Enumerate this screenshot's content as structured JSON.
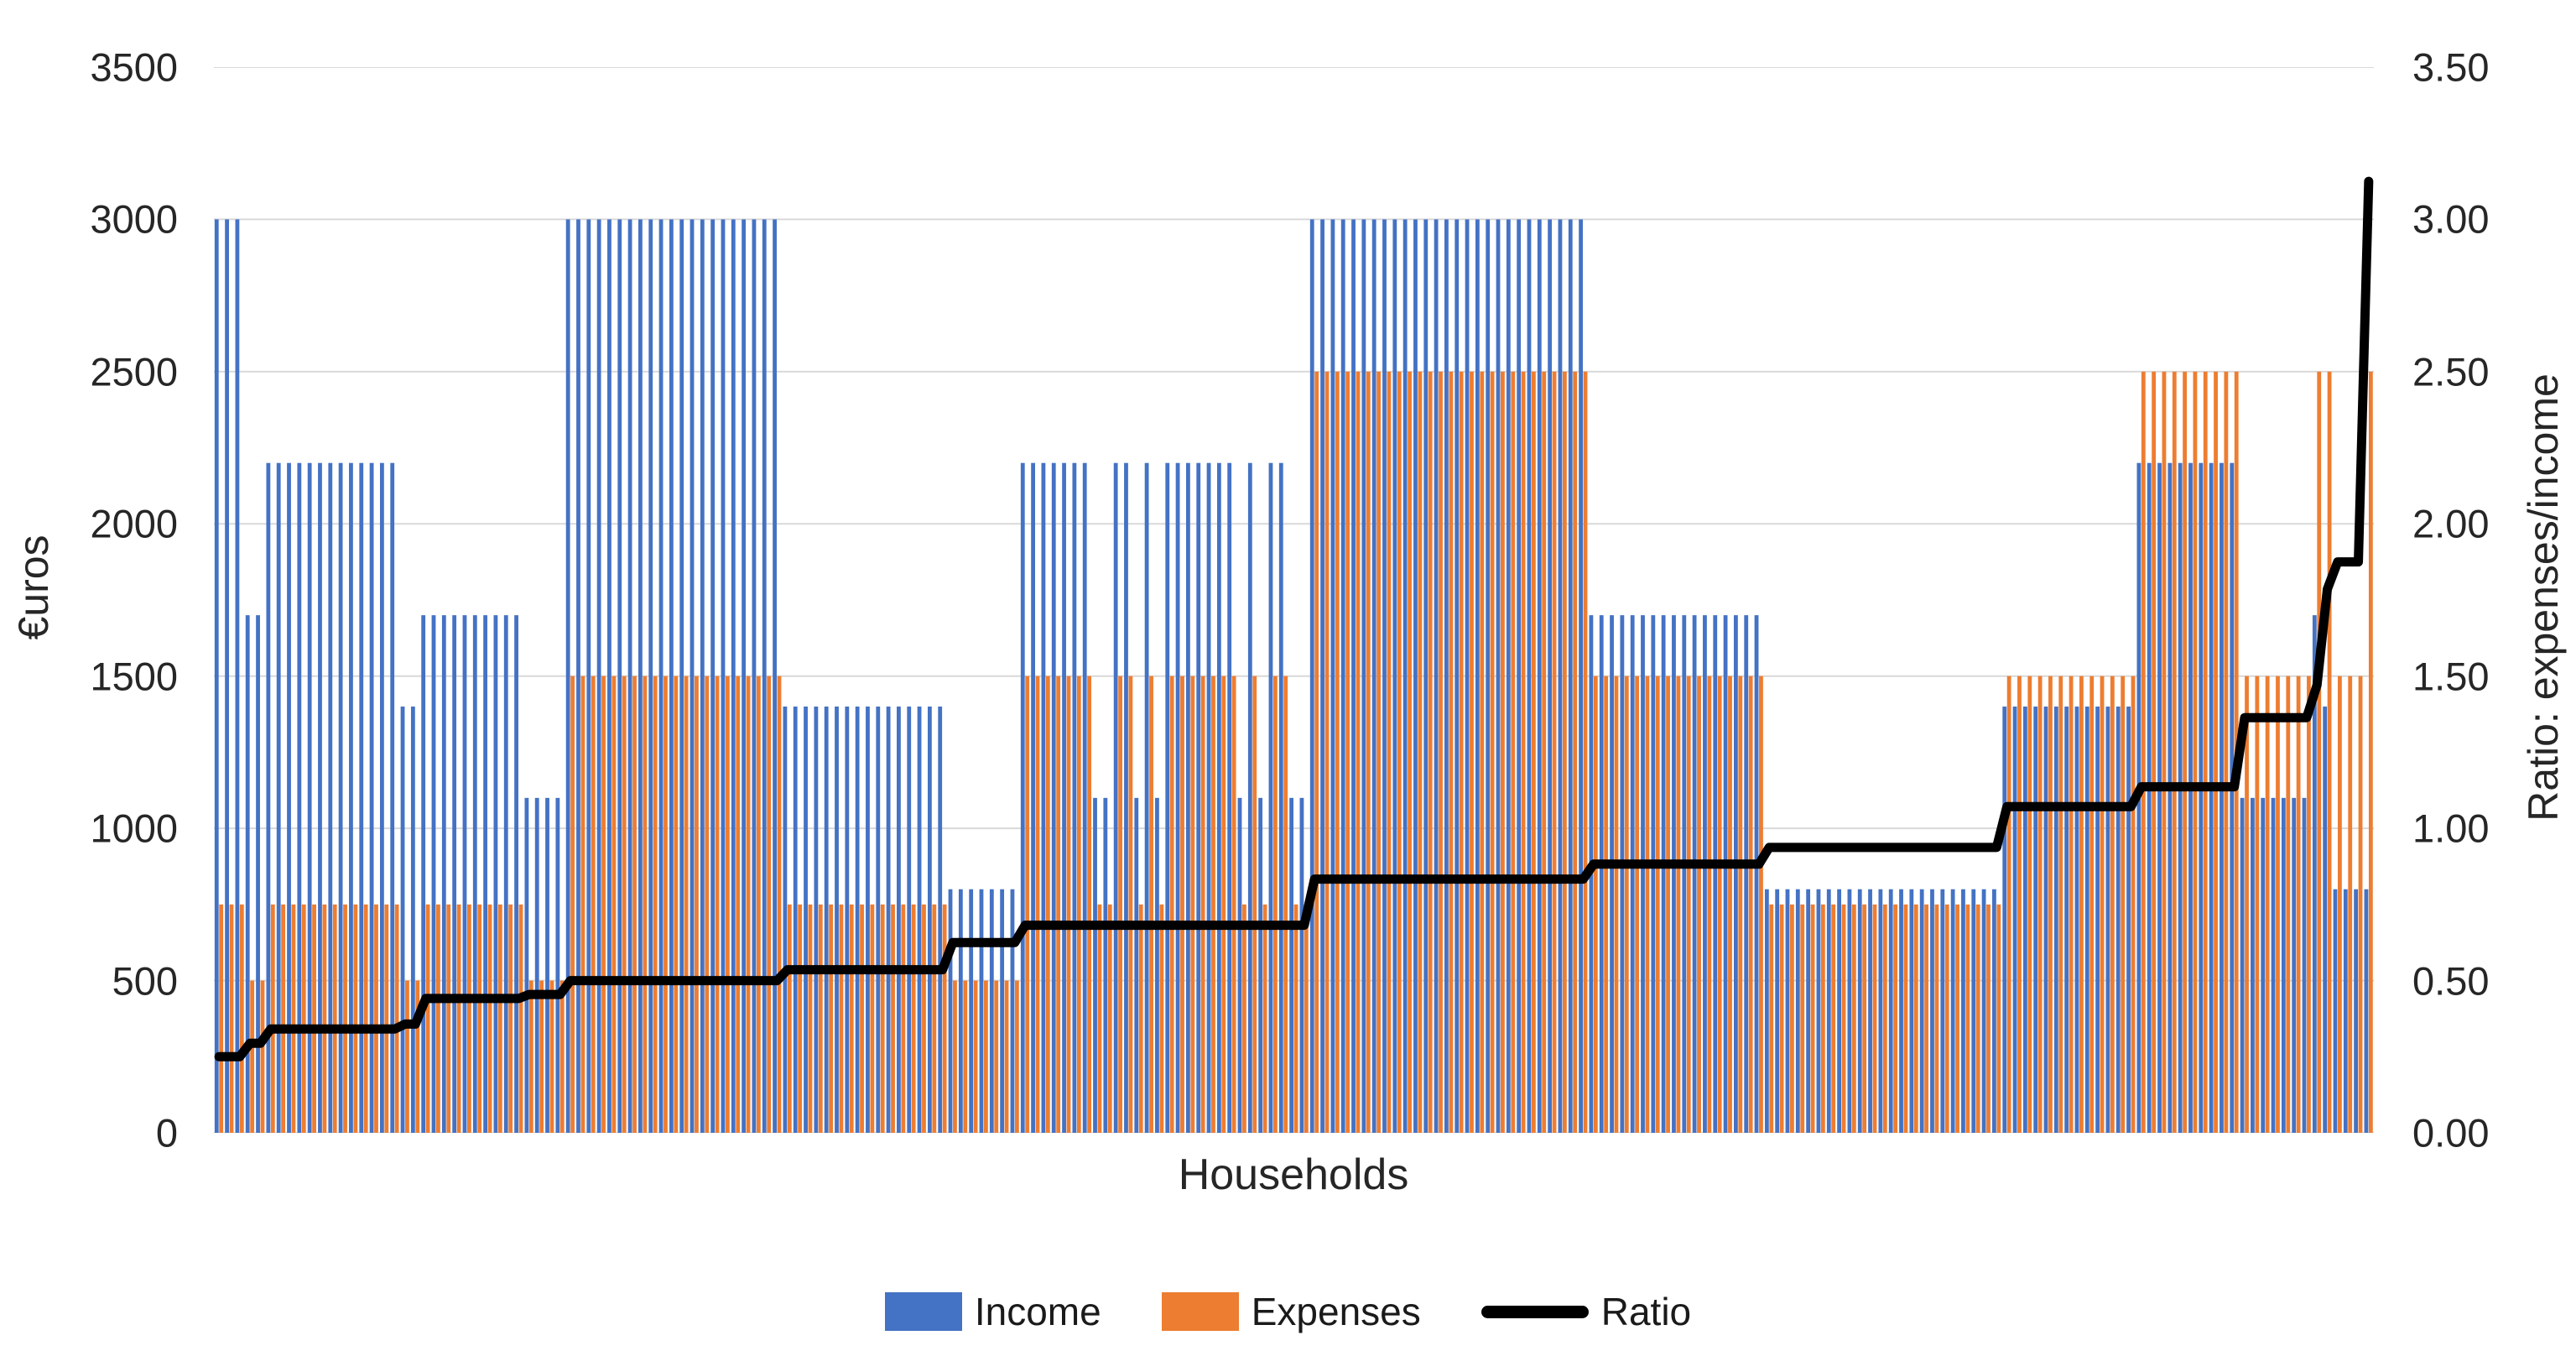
{
  "chart_data": {
    "type": "bar",
    "subtype": "combo-bar-line",
    "title": "",
    "xlabel": "Households",
    "ylabel_left": "€uros",
    "ylabel_right": "Ratio: expenses/income",
    "ylim_left": [
      0,
      3500
    ],
    "ylim_right": [
      0,
      3.5
    ],
    "yticks_left": [
      "0",
      "500",
      "1000",
      "1500",
      "2000",
      "2500",
      "3000",
      "3500"
    ],
    "yticks_right": [
      "0.00",
      "0.50",
      "1.00",
      "1.50",
      "2.00",
      "2.50",
      "3.00",
      "3.50"
    ],
    "grid": true,
    "gridline_color": "#D9D9D9",
    "legend_position": "bottom",
    "x_tick_labels": "none (individual households)",
    "n_households": 209,
    "series": [
      {
        "name": "Income",
        "type": "bar",
        "color": "#4472C4",
        "axis": "left"
      },
      {
        "name": "Expenses",
        "type": "bar",
        "color": "#ED7D31",
        "axis": "left"
      },
      {
        "name": "Ratio",
        "type": "line",
        "color": "#000000",
        "axis": "right",
        "stroke_width": 11
      }
    ],
    "household_groups": [
      {
        "count": 3,
        "income": 3000,
        "expenses": 750,
        "ratio": 0.25
      },
      {
        "count": 2,
        "income": 1700,
        "expenses": 500,
        "ratio": 0.2941
      },
      {
        "count": 13,
        "income": 2200,
        "expenses": 750,
        "ratio": 0.3409
      },
      {
        "count": 2,
        "income": 1400,
        "expenses": 500,
        "ratio": 0.3571
      },
      {
        "count": 10,
        "income": 1700,
        "expenses": 750,
        "ratio": 0.4412
      },
      {
        "count": 4,
        "income": 1100,
        "expenses": 500,
        "ratio": 0.4545
      },
      {
        "count": 21,
        "income": 3000,
        "expenses": 1500,
        "ratio": 0.5
      },
      {
        "count": 16,
        "income": 1400,
        "expenses": 750,
        "ratio": 0.5357
      },
      {
        "count": 7,
        "income": 800,
        "expenses": 500,
        "ratio": 0.625
      },
      {
        "count": 7,
        "income": 2200,
        "expenses": 1500,
        "ratio": 0.6818
      },
      {
        "count": 2,
        "income": 1100,
        "expenses": 750,
        "ratio": 0.6818
      },
      {
        "count": 2,
        "income": 2200,
        "expenses": 1500,
        "ratio": 0.6818
      },
      {
        "count": 1,
        "income": 1100,
        "expenses": 750,
        "ratio": 0.6818
      },
      {
        "count": 1,
        "income": 2200,
        "expenses": 1500,
        "ratio": 0.6818
      },
      {
        "count": 1,
        "income": 1100,
        "expenses": 750,
        "ratio": 0.6818
      },
      {
        "count": 7,
        "income": 2200,
        "expenses": 1500,
        "ratio": 0.6818
      },
      {
        "count": 1,
        "income": 1100,
        "expenses": 750,
        "ratio": 0.6818
      },
      {
        "count": 1,
        "income": 2200,
        "expenses": 1500,
        "ratio": 0.6818
      },
      {
        "count": 1,
        "income": 1100,
        "expenses": 750,
        "ratio": 0.6818
      },
      {
        "count": 2,
        "income": 2200,
        "expenses": 1500,
        "ratio": 0.6818
      },
      {
        "count": 2,
        "income": 1100,
        "expenses": 750,
        "ratio": 0.6818
      },
      {
        "count": 27,
        "income": 3000,
        "expenses": 2500,
        "ratio": 0.8333
      },
      {
        "count": 17,
        "income": 1700,
        "expenses": 1500,
        "ratio": 0.8824
      },
      {
        "count": 23,
        "income": 800,
        "expenses": 750,
        "ratio": 0.9375
      },
      {
        "count": 13,
        "income": 1400,
        "expenses": 1500,
        "ratio": 1.0714
      },
      {
        "count": 10,
        "income": 2200,
        "expenses": 2500,
        "ratio": 1.1364
      },
      {
        "count": 7,
        "income": 1100,
        "expenses": 1500,
        "ratio": 1.3636
      },
      {
        "count": 1,
        "income": 1700,
        "expenses": 2500,
        "ratio": 1.4706
      },
      {
        "count": 1,
        "income": 1400,
        "expenses": 2500,
        "ratio": 1.7857
      },
      {
        "count": 3,
        "income": 800,
        "expenses": 1500,
        "ratio": 1.875
      },
      {
        "count": 1,
        "income": 800,
        "expenses": 2500,
        "ratio": 3.125
      }
    ]
  },
  "colors": {
    "income_bar": "#4472C4",
    "expense_bar": "#ED7D31",
    "ratio_line": "#000000",
    "gridline": "#D9D9D9",
    "axis_text": "#262626",
    "background": "#FFFFFF"
  },
  "layout_note": "no chart title; legend bottom-center; left y-axis in euros, right y-axis ratio; x axis has no tick labels"
}
